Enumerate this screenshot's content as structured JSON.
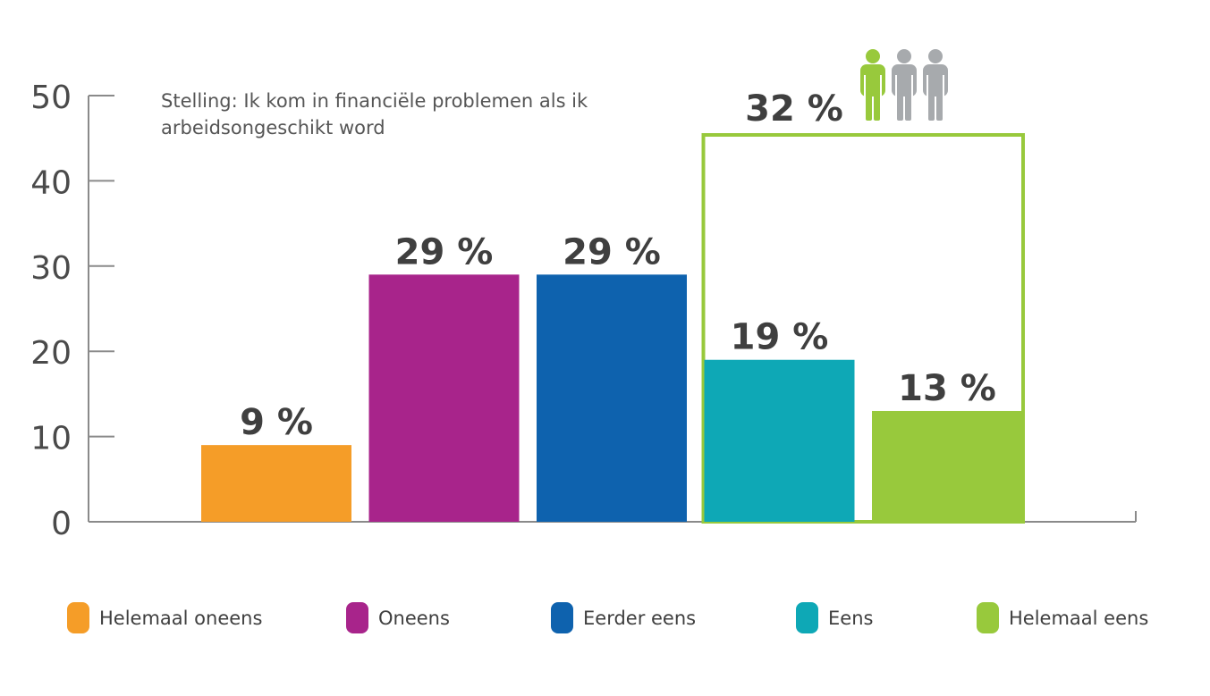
{
  "chart_data": {
    "type": "bar",
    "title": "Stelling: Ik kom in financiële problemen als ik arbeidsongeschikt word",
    "title_lines": [
      "Stelling: Ik kom in financiële problemen als ik",
      "arbeidsongeschikt word"
    ],
    "categories": [
      "Helemaal oneens",
      "Oneens",
      "Eerder eens",
      "Eens",
      "Helemaal eens"
    ],
    "values": [
      9,
      29,
      29,
      19,
      13
    ],
    "data_labels": [
      "9 %",
      "29 %",
      "29 %",
      "19 %",
      "13 %"
    ],
    "colors": [
      "#f59d28",
      "#a8248b",
      "#0e62ae",
      "#0ea8b6",
      "#98c93c"
    ],
    "ylim": [
      0,
      50
    ],
    "yticks": [
      "0",
      "10",
      "20",
      "30",
      "40",
      "50"
    ],
    "grid": false,
    "legend_position": "bottom",
    "xlabel": "",
    "ylabel": "",
    "highlight": {
      "label": "32 %",
      "value": 32,
      "categories": [
        "Eens",
        "Helemaal eens"
      ],
      "color": "#98c93c",
      "icon": "people-icon",
      "icon_colors": [
        "#98c93c",
        "#a7aaad",
        "#a7aaad"
      ]
    }
  }
}
